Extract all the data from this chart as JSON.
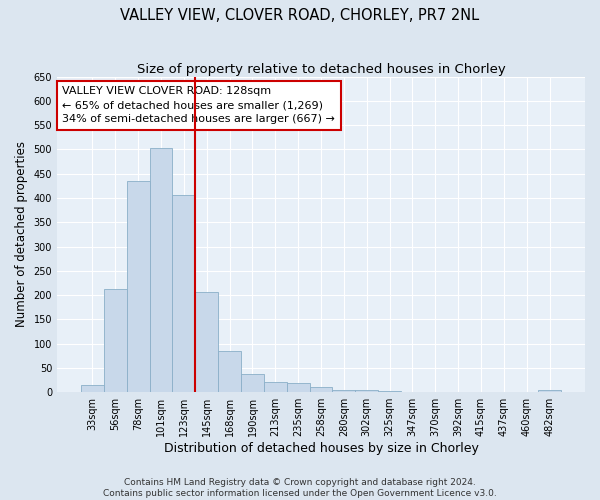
{
  "title": "VALLEY VIEW, CLOVER ROAD, CHORLEY, PR7 2NL",
  "subtitle": "Size of property relative to detached houses in Chorley",
  "xlabel": "Distribution of detached houses by size in Chorley",
  "ylabel": "Number of detached properties",
  "bar_labels": [
    "33sqm",
    "56sqm",
    "78sqm",
    "101sqm",
    "123sqm",
    "145sqm",
    "168sqm",
    "190sqm",
    "213sqm",
    "235sqm",
    "258sqm",
    "280sqm",
    "302sqm",
    "325sqm",
    "347sqm",
    "370sqm",
    "392sqm",
    "415sqm",
    "437sqm",
    "460sqm",
    "482sqm"
  ],
  "bar_values": [
    15,
    213,
    435,
    503,
    407,
    207,
    84,
    38,
    20,
    18,
    10,
    5,
    4,
    2,
    1,
    1,
    1,
    0,
    0,
    0,
    4
  ],
  "bar_color": "#c8d8ea",
  "bar_edge_color": "#8aafc8",
  "vline_index": 4,
  "annotation_line1": "VALLEY VIEW CLOVER ROAD: 128sqm",
  "annotation_line2": "← 65% of detached houses are smaller (1,269)",
  "annotation_line3": "34% of semi-detached houses are larger (667) →",
  "annotation_box_facecolor": "#ffffff",
  "annotation_box_edgecolor": "#cc0000",
  "vline_color": "#cc0000",
  "ylim": [
    0,
    650
  ],
  "yticks": [
    0,
    50,
    100,
    150,
    200,
    250,
    300,
    350,
    400,
    450,
    500,
    550,
    600,
    650
  ],
  "footer_line1": "Contains HM Land Registry data © Crown copyright and database right 2024.",
  "footer_line2": "Contains public sector information licensed under the Open Government Licence v3.0.",
  "fig_facecolor": "#dce6f0",
  "plot_facecolor": "#e8f0f8",
  "grid_color": "#ffffff",
  "title_fontsize": 10.5,
  "subtitle_fontsize": 9.5,
  "tick_fontsize": 7,
  "ylabel_fontsize": 8.5,
  "xlabel_fontsize": 9,
  "annotation_fontsize": 8,
  "footer_fontsize": 6.5
}
